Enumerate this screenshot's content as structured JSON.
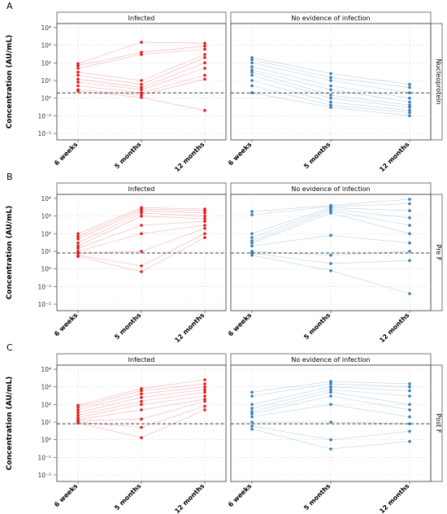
{
  "chart_data": [
    {
      "type": "line",
      "panel_letter": "A",
      "strip_right": "Nucleoprotein",
      "ylabel": "Concentration (AU/mL)",
      "x_categories": [
        "6 weeks",
        "5 months",
        "12 months"
      ],
      "y_scale": "log10",
      "ylim": [
        0.01,
        10000
      ],
      "y_ticks": [
        "10⁻²",
        "10⁻¹",
        "10⁰",
        "10¹",
        "10²",
        "10³",
        "10⁴"
      ],
      "threshold": 2,
      "groups": [
        {
          "name": "Infected",
          "color": "#e41a1c",
          "points": [
            [
              90,
              70,
              50,
              30,
              20,
              12,
              8,
              5,
              3,
              2.5
            ],
            [
              1500,
              400,
              300,
              10,
              6,
              4,
              3,
              2,
              1.5,
              1.1
            ],
            [
              1300,
              900,
              600,
              300,
              200,
              100,
              50,
              20,
              12,
              0.2
            ]
          ]
        },
        {
          "name": "No evidence of infection",
          "color": "#377eb8",
          "points": [
            [
              200,
              150,
              100,
              60,
              40,
              30,
              20,
              10,
              5,
              2
            ],
            [
              25,
              15,
              10,
              5,
              3,
              1.5,
              1,
              0.6,
              0.4,
              0.3
            ],
            [
              6,
              4,
              2,
              1,
              0.6,
              0.4,
              0.3,
              0.2,
              0.15,
              0.1
            ]
          ]
        }
      ]
    },
    {
      "type": "line",
      "panel_letter": "B",
      "strip_right": "Pre F",
      "ylabel": "Concentration (AU/mL)",
      "x_categories": [
        "6 weeks",
        "5 months",
        "12 months"
      ],
      "y_scale": "log10",
      "ylim": [
        0.01,
        10000
      ],
      "y_ticks": [
        "10⁻²",
        "10⁻¹",
        "10⁰",
        "10¹",
        "10²",
        "10³",
        "10⁴"
      ],
      "threshold": 8,
      "groups": [
        {
          "name": "Infected",
          "color": "#e41a1c",
          "points": [
            [
              100,
              70,
              50,
              30,
              20,
              15,
              10,
              8,
              6,
              5
            ],
            [
              3000,
              2500,
              2000,
              1500,
              1000,
              300,
              100,
              10,
              1.5,
              0.7
            ],
            [
              2500,
              2000,
              1500,
              1000,
              700,
              500,
              300,
              200,
              100,
              60
            ]
          ]
        },
        {
          "name": "No evidence of infection",
          "color": "#377eb8",
          "points": [
            [
              1800,
              1200,
              100,
              60,
              40,
              30,
              20,
              10,
              8,
              6
            ],
            [
              4000,
              3500,
              3000,
              2500,
              2000,
              1500,
              80,
              6,
              2,
              0.8
            ],
            [
              9000,
              5000,
              2000,
              800,
              300,
              100,
              30,
              10,
              3,
              0.04
            ]
          ]
        }
      ]
    },
    {
      "type": "line",
      "panel_letter": "C",
      "strip_right": "Post F",
      "ylabel": "Concentration (AU/mL)",
      "x_categories": [
        "6 weeks",
        "5 months",
        "12 months"
      ],
      "y_scale": "log10",
      "ylim": [
        0.01,
        10000
      ],
      "y_ticks": [
        "10⁻²",
        "10⁻¹",
        "10⁰",
        "10¹",
        "10²",
        "10³",
        "10⁴"
      ],
      "threshold": 8,
      "groups": [
        {
          "name": "Infected",
          "color": "#e41a1c",
          "points": [
            [
              90,
              70,
              50,
              35,
              25,
              18,
              14,
              12,
              10,
              9
            ],
            [
              800,
              600,
              400,
              250,
              150,
              100,
              50,
              15,
              5,
              1.3
            ],
            [
              2500,
              1500,
              1000,
              700,
              500,
              300,
              200,
              150,
              80,
              50
            ]
          ]
        },
        {
          "name": "No evidence of infection",
          "color": "#377eb8",
          "points": [
            [
              500,
              300,
              100,
              60,
              40,
              30,
              20,
              10,
              6,
              4
            ],
            [
              2000,
              1500,
              1000,
              700,
              500,
              300,
              100,
              10,
              1,
              0.3
            ],
            [
              1500,
              1000,
              600,
              300,
              100,
              50,
              20,
              8,
              3,
              0.8
            ]
          ]
        }
      ]
    }
  ]
}
